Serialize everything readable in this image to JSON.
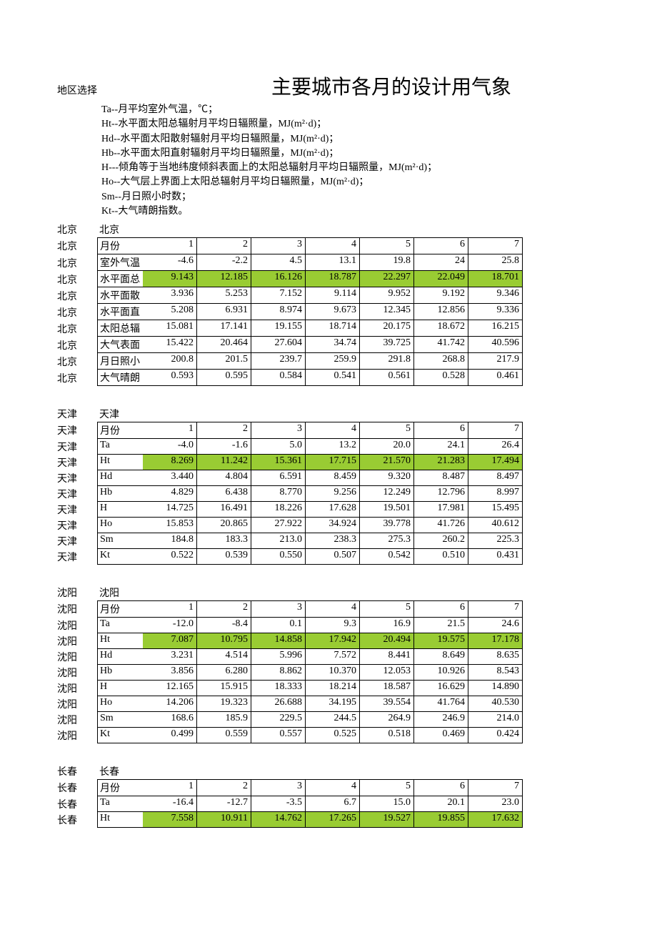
{
  "colors": {
    "highlight": "#99cc33",
    "border": "#000000",
    "background": "#ffffff",
    "text": "#000000"
  },
  "fontsize": {
    "body": 14,
    "title": 28
  },
  "header": {
    "region_select": "地区选择",
    "main_title": "主要城市各月的设计用气象"
  },
  "legend": [
    "Ta--月平均室外气温，℃；",
    "Ht--水平面太阳总辐射月平均日辐照量，MJ(m²·d)；",
    "Hd--水平面太阳散射辐射月平均日辐照量，MJ(m²·d)；",
    "Hb--水平面太阳直射辐射月平均日辐照量，MJ(m²·d)；",
    "H---倾角等于当地纬度倾斜表面上的太阳总辐射月平均日辐照量，MJ(m²·d)；",
    "Ho--大气层上界面上太阳总辐射月平均日辐照量，MJ(m²·d)；",
    "Sm--月日照小时数；",
    "Kt--大气晴朗指数。"
  ],
  "cities": [
    {
      "label": "北京",
      "name": "北京",
      "rows": [
        {
          "param": "月份",
          "highlight": false,
          "values": [
            "1",
            "2",
            "3",
            "4",
            "5",
            "6",
            "7"
          ]
        },
        {
          "param": "室外气温",
          "highlight": false,
          "values": [
            "-4.6",
            "-2.2",
            "4.5",
            "13.1",
            "19.8",
            "24",
            "25.8"
          ]
        },
        {
          "param": "水平面总",
          "highlight": true,
          "values": [
            "9.143",
            "12.185",
            "16.126",
            "18.787",
            "22.297",
            "22.049",
            "18.701"
          ]
        },
        {
          "param": "水平面散",
          "highlight": false,
          "values": [
            "3.936",
            "5.253",
            "7.152",
            "9.114",
            "9.952",
            "9.192",
            "9.346"
          ]
        },
        {
          "param": "水平面直",
          "highlight": false,
          "values": [
            "5.208",
            "6.931",
            "8.974",
            "9.673",
            "12.345",
            "12.856",
            "9.336"
          ]
        },
        {
          "param": "太阳总辐",
          "highlight": false,
          "values": [
            "15.081",
            "17.141",
            "19.155",
            "18.714",
            "20.175",
            "18.672",
            "16.215"
          ]
        },
        {
          "param": "大气表面",
          "highlight": false,
          "values": [
            "15.422",
            "20.464",
            "27.604",
            "34.74",
            "39.725",
            "41.742",
            "40.596"
          ]
        },
        {
          "param": "月日照小",
          "highlight": false,
          "values": [
            "200.8",
            "201.5",
            "239.7",
            "259.9",
            "291.8",
            "268.8",
            "217.9"
          ]
        },
        {
          "param": "大气晴朗",
          "highlight": false,
          "values": [
            "0.593",
            "0.595",
            "0.584",
            "0.541",
            "0.561",
            "0.528",
            "0.461"
          ]
        }
      ]
    },
    {
      "label": "天津",
      "name": "天津",
      "rows": [
        {
          "param": "月份",
          "highlight": false,
          "values": [
            "1",
            "2",
            "3",
            "4",
            "5",
            "6",
            "7"
          ]
        },
        {
          "param": "Ta",
          "highlight": false,
          "values": [
            "-4.0",
            "-1.6",
            "5.0",
            "13.2",
            "20.0",
            "24.1",
            "26.4"
          ]
        },
        {
          "param": "Ht",
          "highlight": true,
          "values": [
            "8.269",
            "11.242",
            "15.361",
            "17.715",
            "21.570",
            "21.283",
            "17.494"
          ]
        },
        {
          "param": "Hd",
          "highlight": false,
          "values": [
            "3.440",
            "4.804",
            "6.591",
            "8.459",
            "9.320",
            "8.487",
            "8.497"
          ]
        },
        {
          "param": "Hb",
          "highlight": false,
          "values": [
            "4.829",
            "6.438",
            "8.770",
            "9.256",
            "12.249",
            "12.796",
            "8.997"
          ]
        },
        {
          "param": "H",
          "highlight": false,
          "values": [
            "14.725",
            "16.491",
            "18.226",
            "17.628",
            "19.501",
            "17.981",
            "15.495"
          ]
        },
        {
          "param": "Ho",
          "highlight": false,
          "values": [
            "15.853",
            "20.865",
            "27.922",
            "34.924",
            "39.778",
            "41.726",
            "40.612"
          ]
        },
        {
          "param": "Sm",
          "highlight": false,
          "values": [
            "184.8",
            "183.3",
            "213.0",
            "238.3",
            "275.3",
            "260.2",
            "225.3"
          ]
        },
        {
          "param": "Kt",
          "highlight": false,
          "values": [
            "0.522",
            "0.539",
            "0.550",
            "0.507",
            "0.542",
            "0.510",
            "0.431"
          ]
        }
      ]
    },
    {
      "label": "沈阳",
      "name": "沈阳",
      "rows": [
        {
          "param": "月份",
          "highlight": false,
          "values": [
            "1",
            "2",
            "3",
            "4",
            "5",
            "6",
            "7"
          ]
        },
        {
          "param": "Ta",
          "highlight": false,
          "values": [
            "-12.0",
            "-8.4",
            "0.1",
            "9.3",
            "16.9",
            "21.5",
            "24.6"
          ]
        },
        {
          "param": "Ht",
          "highlight": true,
          "values": [
            "7.087",
            "10.795",
            "14.858",
            "17.942",
            "20.494",
            "19.575",
            "17.178"
          ]
        },
        {
          "param": "Hd",
          "highlight": false,
          "values": [
            "3.231",
            "4.514",
            "5.996",
            "7.572",
            "8.441",
            "8.649",
            "8.635"
          ]
        },
        {
          "param": "Hb",
          "highlight": false,
          "values": [
            "3.856",
            "6.280",
            "8.862",
            "10.370",
            "12.053",
            "10.926",
            "8.543"
          ]
        },
        {
          "param": "H",
          "highlight": false,
          "values": [
            "12.165",
            "15.915",
            "18.333",
            "18.214",
            "18.587",
            "16.629",
            "14.890"
          ]
        },
        {
          "param": "Ho",
          "highlight": false,
          "values": [
            "14.206",
            "19.323",
            "26.688",
            "34.195",
            "39.554",
            "41.764",
            "40.530"
          ]
        },
        {
          "param": "Sm",
          "highlight": false,
          "values": [
            "168.6",
            "185.9",
            "229.5",
            "244.5",
            "264.9",
            "246.9",
            "214.0"
          ]
        },
        {
          "param": "Kt",
          "highlight": false,
          "values": [
            "0.499",
            "0.559",
            "0.557",
            "0.525",
            "0.518",
            "0.469",
            "0.424"
          ]
        }
      ]
    },
    {
      "label": "长春",
      "name": "长春",
      "rows": [
        {
          "param": "月份",
          "highlight": false,
          "values": [
            "1",
            "2",
            "3",
            "4",
            "5",
            "6",
            "7"
          ]
        },
        {
          "param": "Ta",
          "highlight": false,
          "values": [
            "-16.4",
            "-12.7",
            "-3.5",
            "6.7",
            "15.0",
            "20.1",
            "23.0"
          ]
        },
        {
          "param": "Ht",
          "highlight": true,
          "values": [
            "7.558",
            "10.911",
            "14.762",
            "17.265",
            "19.527",
            "19.855",
            "17.632"
          ]
        }
      ]
    }
  ]
}
